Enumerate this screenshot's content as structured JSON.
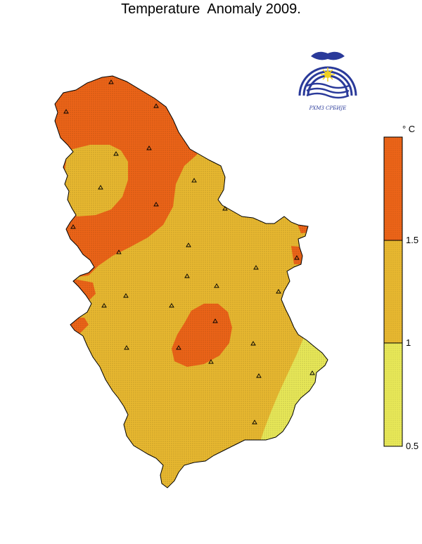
{
  "title": "Temperature  Anomaly 2009.",
  "logo": {
    "icon": "rhmz-srbije-logo",
    "text": "РХМЗ СРБИЈЕ"
  },
  "legend": {
    "unit": "° C",
    "bins": [
      {
        "from": 1.5,
        "color": "#ec6418"
      },
      {
        "from": 1,
        "to": 1.5,
        "color": "#e8b830"
      },
      {
        "from": 0.5,
        "to": 1,
        "color": "#e8e858"
      }
    ],
    "ticks": [
      "1.5",
      "1",
      "0.5"
    ]
  },
  "colors": {
    "high": "#ec6418",
    "mid": "#e8b830",
    "low": "#e8e858",
    "outline": "#000000"
  },
  "station_marker": "triangle-icon"
}
